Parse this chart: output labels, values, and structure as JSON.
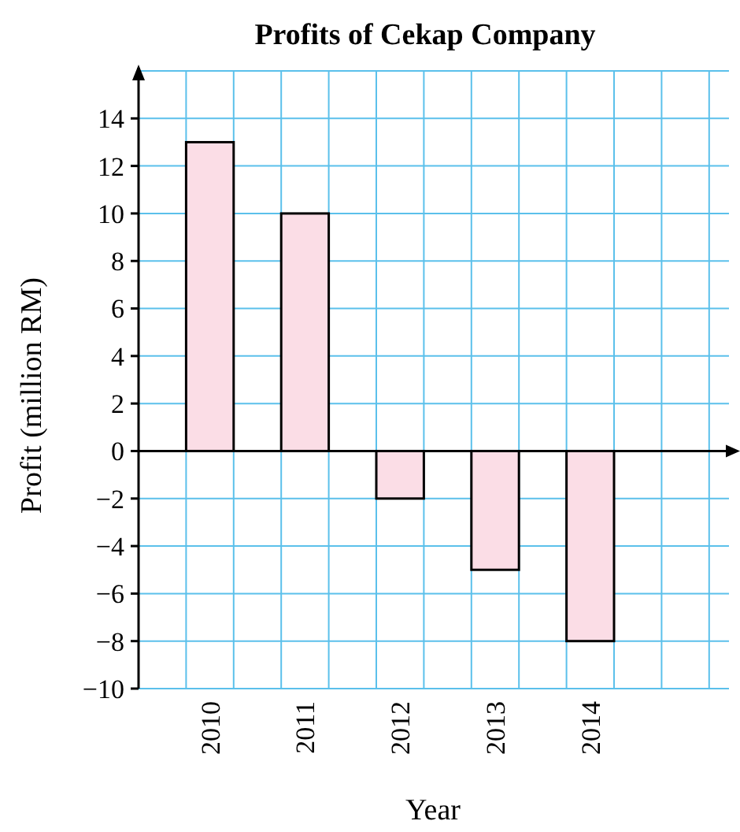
{
  "chart_data": {
    "type": "bar",
    "title": "Profits of Cekap Company",
    "xlabel": "Year",
    "ylabel": "Profit (million RM)",
    "categories": [
      "2010",
      "2011",
      "2012",
      "2013",
      "2014"
    ],
    "values": [
      13,
      10,
      -2,
      -5,
      -8
    ],
    "color": "#fbdde6",
    "ylim": [
      -10,
      16
    ],
    "yticks": [
      {
        "value": -10,
        "label": "−10"
      },
      {
        "value": -8,
        "label": "−8"
      },
      {
        "value": -6,
        "label": "−6"
      },
      {
        "value": -4,
        "label": "−4"
      },
      {
        "value": -2,
        "label": "−2"
      },
      0,
      2,
      4,
      6,
      8,
      10,
      12,
      14
    ],
    "grid": true
  }
}
